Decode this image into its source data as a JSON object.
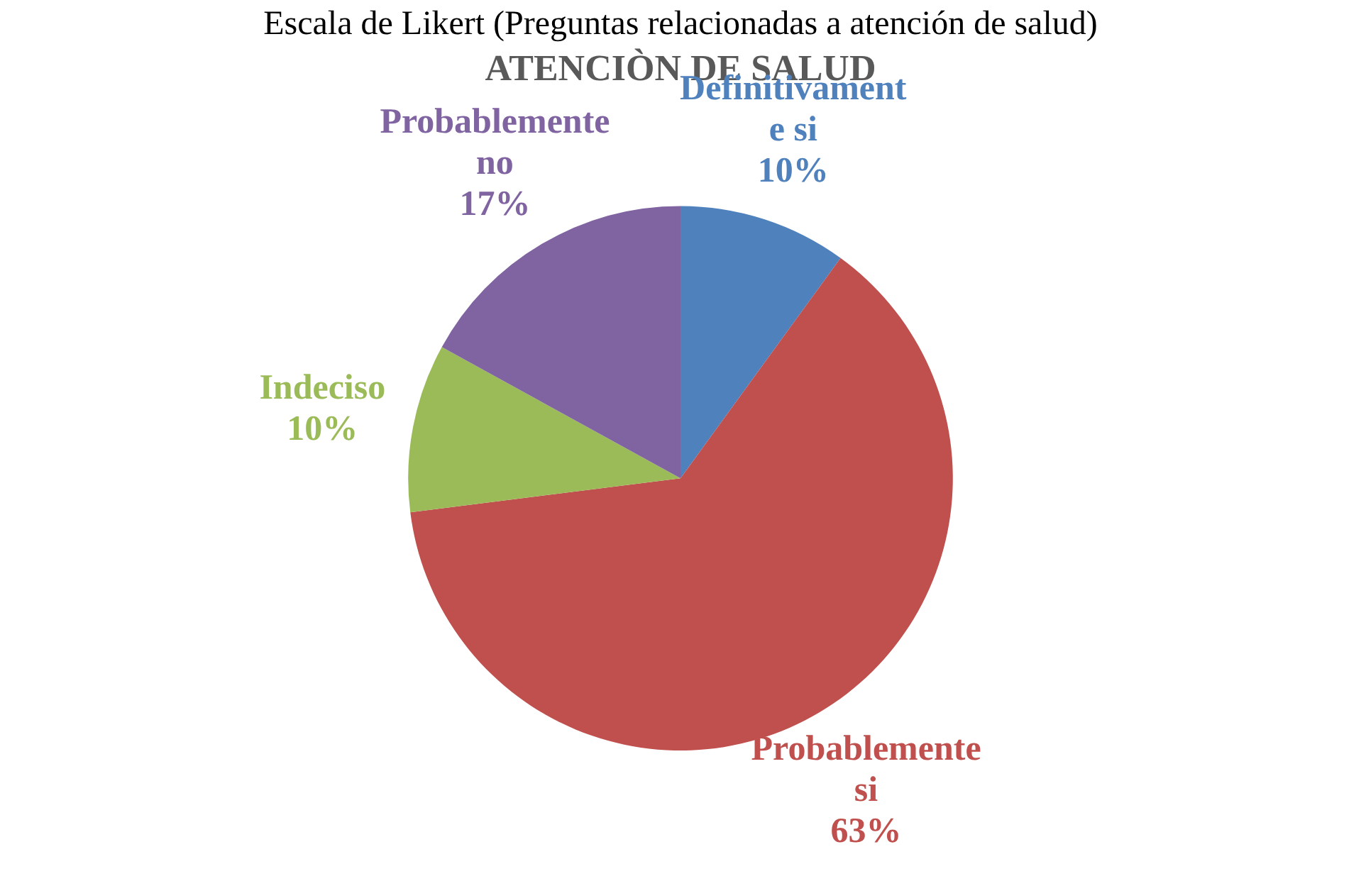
{
  "chart_data": {
    "type": "pie",
    "title": "ATENCIÒN DE SALUD",
    "subtitle": "Escala de Likert (Preguntas relacionadas a atención de salud)",
    "categories": [
      "Definitivamente si",
      "Probablemente si",
      "Indeciso",
      "Probablemente no"
    ],
    "values": [
      10,
      63,
      10,
      17
    ],
    "colors": [
      "#4f81bd",
      "#c0504d",
      "#9bbb59",
      "#8064a2"
    ],
    "value_labels": [
      "10%",
      "63%",
      "10%",
      "17%"
    ],
    "legend": false
  }
}
